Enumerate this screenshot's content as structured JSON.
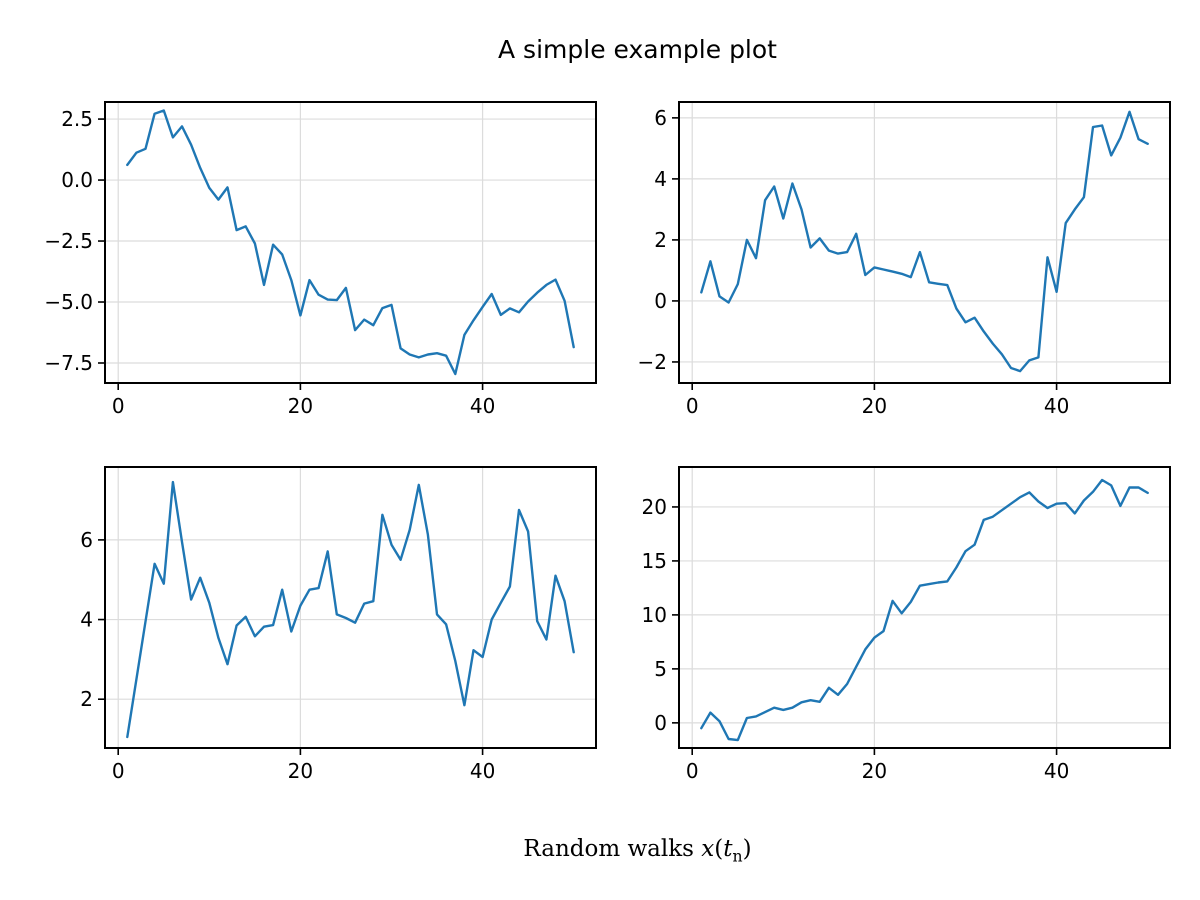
{
  "title": "A simple example plot",
  "xlabel": {
    "full_text": "Random walks x(t_n)",
    "prefix": "Random walks ",
    "var": "x",
    "open_paren": "(",
    "t_var": "t",
    "subscript": "n",
    "close_paren": ")"
  },
  "line_color": "#1f77b4",
  "grid_color": "#dcdcdc",
  "chart_data": [
    {
      "name": "subplot-top-left",
      "type": "line",
      "x_start": 1,
      "x_step": 1,
      "values": [
        0.62,
        1.12,
        1.28,
        2.72,
        2.85,
        1.75,
        2.2,
        1.45,
        0.5,
        -0.32,
        -0.8,
        -0.3,
        -2.05,
        -1.9,
        -2.6,
        -4.3,
        -2.65,
        -3.05,
        -4.1,
        -5.55,
        -4.1,
        -4.7,
        -4.9,
        -4.92,
        -4.42,
        -6.15,
        -5.72,
        -5.95,
        -5.25,
        -5.12,
        -6.9,
        -7.15,
        -7.27,
        -7.15,
        -7.1,
        -7.2,
        -7.95,
        -6.35,
        -5.75,
        -5.2,
        -4.67,
        -5.53,
        -5.26,
        -5.42,
        -4.98,
        -4.62,
        -4.3,
        -4.08,
        -4.95,
        -6.85
      ],
      "xticks": [
        0,
        20,
        40
      ],
      "xtick_labels": [
        "0",
        "20",
        "40"
      ],
      "yticks": [
        2.5,
        0.0,
        -2.5,
        -5.0,
        -7.5
      ],
      "ytick_labels": [
        "2.5",
        "0.0",
        "−2.5",
        "−5.0",
        "−7.5"
      ],
      "xlim": [
        -1.45,
        52.45
      ],
      "ylim": [
        -8.32,
        3.2
      ],
      "grid": true
    },
    {
      "name": "subplot-top-right",
      "type": "line",
      "x_start": 1,
      "x_step": 1,
      "values": [
        0.28,
        1.3,
        0.15,
        -0.05,
        0.55,
        2.0,
        1.4,
        3.3,
        3.75,
        2.7,
        3.85,
        3.0,
        1.75,
        2.05,
        1.65,
        1.55,
        1.6,
        2.2,
        0.85,
        1.1,
        1.03,
        0.96,
        0.89,
        0.78,
        1.6,
        0.61,
        0.56,
        0.52,
        -0.25,
        -0.7,
        -0.55,
        -1.0,
        -1.4,
        -1.75,
        -2.2,
        -2.3,
        -1.95,
        -1.85,
        1.43,
        0.3,
        2.55,
        3.0,
        3.4,
        5.7,
        5.75,
        4.77,
        5.35,
        6.2,
        5.3,
        5.15
      ],
      "xticks": [
        0,
        20,
        40
      ],
      "xtick_labels": [
        "0",
        "20",
        "40"
      ],
      "yticks": [
        6,
        4,
        2,
        0,
        -2
      ],
      "ytick_labels": [
        "6",
        "4",
        "2",
        "0",
        "−2"
      ],
      "xlim": [
        -1.45,
        52.45
      ],
      "ylim": [
        -2.69,
        6.52
      ],
      "grid": true
    },
    {
      "name": "subplot-bottom-left",
      "type": "line",
      "x_start": 1,
      "x_step": 1,
      "values": [
        1.05,
        2.5,
        3.95,
        5.4,
        4.9,
        7.45,
        5.95,
        4.5,
        5.05,
        4.42,
        3.54,
        2.88,
        3.85,
        4.07,
        3.58,
        3.82,
        3.86,
        4.75,
        3.7,
        4.35,
        4.75,
        4.79,
        5.71,
        4.13,
        4.04,
        3.92,
        4.4,
        4.46,
        6.63,
        5.88,
        5.5,
        6.25,
        7.38,
        6.13,
        4.13,
        3.88,
        2.96,
        1.85,
        3.23,
        3.06,
        4.0,
        4.42,
        4.83,
        6.75,
        6.21,
        3.96,
        3.5,
        5.1,
        4.46,
        3.18
      ],
      "xticks": [
        0,
        20,
        40
      ],
      "xtick_labels": [
        "0",
        "20",
        "40"
      ],
      "yticks": [
        6,
        4,
        2
      ],
      "ytick_labels": [
        "6",
        "4",
        "2"
      ],
      "xlim": [
        -1.45,
        52.45
      ],
      "ylim": [
        0.775,
        7.83
      ],
      "grid": true
    },
    {
      "name": "subplot-bottom-right",
      "type": "line",
      "x_start": 1,
      "x_step": 1,
      "values": [
        -0.5,
        0.95,
        0.15,
        -1.5,
        -1.6,
        0.45,
        0.6,
        1.0,
        1.4,
        1.2,
        1.4,
        1.9,
        2.1,
        1.95,
        3.25,
        2.6,
        3.6,
        5.2,
        6.8,
        7.9,
        8.5,
        11.3,
        10.15,
        11.2,
        12.7,
        12.85,
        13.0,
        13.1,
        14.4,
        15.9,
        16.5,
        18.8,
        19.1,
        19.7,
        20.3,
        20.9,
        21.35,
        20.5,
        19.9,
        20.3,
        20.35,
        19.4,
        20.6,
        21.4,
        22.5,
        22.0,
        20.1,
        21.8,
        21.8,
        21.3
      ],
      "xticks": [
        0,
        20,
        40
      ],
      "xtick_labels": [
        "0",
        "20",
        "40"
      ],
      "yticks": [
        20,
        15,
        10,
        5,
        0
      ],
      "ytick_labels": [
        "20",
        "15",
        "10",
        "5",
        "0"
      ],
      "xlim": [
        -1.45,
        52.45
      ],
      "ylim": [
        -2.33,
        23.7
      ],
      "grid": true
    }
  ]
}
